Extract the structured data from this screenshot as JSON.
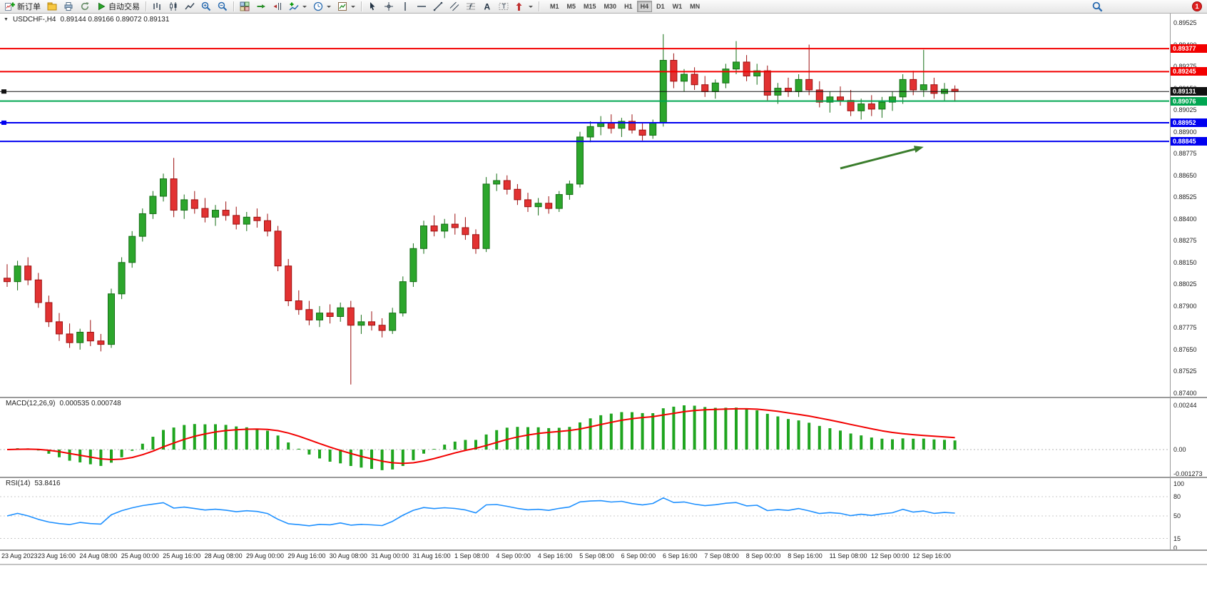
{
  "toolbar": {
    "new_order_label": "新订单",
    "auto_trading_label": "自动交易",
    "timeframes": [
      "M1",
      "M5",
      "M15",
      "M30",
      "H1",
      "H4",
      "D1",
      "W1",
      "MN"
    ],
    "active_timeframe": "H4",
    "notification_count": "1"
  },
  "symbol_overlay": {
    "dropdown_glyph": "▼",
    "symbol_period": "USDCHF-,H4",
    "ohlc_text": "0.89144 0.89166 0.89072 0.89131"
  },
  "chart_data": {
    "type": "candlestick",
    "symbol": "USDCHF-",
    "timeframe": "H4",
    "current_bar": {
      "open": 0.89144,
      "high": 0.89166,
      "low": 0.89072,
      "close": 0.89131
    },
    "price_axis": {
      "min": 0.874,
      "max": 0.89525,
      "tick_step": 0.00125,
      "ticks": [
        "0.89525",
        "0.89400",
        "0.89275",
        "0.89150",
        "0.89025",
        "0.88900",
        "0.88775",
        "0.88650",
        "0.88525",
        "0.88400",
        "0.88275",
        "0.88150",
        "0.88025",
        "0.87900",
        "0.87775",
        "0.87650",
        "0.87525",
        "0.87400"
      ]
    },
    "time_labels": [
      "23 Aug 2023",
      "23 Aug 16:00",
      "24 Aug 08:00",
      "25 Aug 00:00",
      "25 Aug 16:00",
      "28 Aug 08:00",
      "29 Aug 00:00",
      "29 Aug 16:00",
      "30 Aug 08:00",
      "31 Aug 00:00",
      "31 Aug 16:00",
      "1 Sep 08:00",
      "4 Sep 00:00",
      "4 Sep 16:00",
      "5 Sep 08:00",
      "6 Sep 00:00",
      "6 Sep 16:00",
      "7 Sep 08:00",
      "8 Sep 00:00",
      "8 Sep 16:00",
      "11 Sep 08:00",
      "12 Sep 00:00",
      "12 Sep 16:00"
    ],
    "colors": {
      "up": "#2ca62c",
      "up_border": "#156e15",
      "down": "#e23232",
      "down_border": "#9c1010",
      "background": "#ffffff"
    },
    "candles": [
      [
        0.8806,
        0.8814,
        0.8801,
        0.8804
      ],
      [
        0.8804,
        0.8816,
        0.8799,
        0.8813
      ],
      [
        0.8813,
        0.8818,
        0.8802,
        0.8805
      ],
      [
        0.8805,
        0.8809,
        0.8789,
        0.8792
      ],
      [
        0.8792,
        0.8796,
        0.8778,
        0.8781
      ],
      [
        0.8781,
        0.8786,
        0.877,
        0.8774
      ],
      [
        0.8774,
        0.878,
        0.8766,
        0.8769
      ],
      [
        0.8769,
        0.8777,
        0.8765,
        0.8775
      ],
      [
        0.8775,
        0.8782,
        0.8767,
        0.877
      ],
      [
        0.877,
        0.8774,
        0.8764,
        0.8768
      ],
      [
        0.8768,
        0.88,
        0.8766,
        0.8797
      ],
      [
        0.8797,
        0.8818,
        0.8794,
        0.8815
      ],
      [
        0.8815,
        0.8833,
        0.8812,
        0.883
      ],
      [
        0.883,
        0.8846,
        0.8827,
        0.8843
      ],
      [
        0.8843,
        0.8856,
        0.884,
        0.8853
      ],
      [
        0.8853,
        0.8866,
        0.885,
        0.8863
      ],
      [
        0.8863,
        0.8875,
        0.8841,
        0.8845
      ],
      [
        0.8845,
        0.8854,
        0.884,
        0.8851
      ],
      [
        0.8851,
        0.8856,
        0.8843,
        0.8846
      ],
      [
        0.8846,
        0.8852,
        0.8838,
        0.8841
      ],
      [
        0.8841,
        0.8848,
        0.8836,
        0.8845
      ],
      [
        0.8845,
        0.885,
        0.8839,
        0.8842
      ],
      [
        0.8842,
        0.8847,
        0.8834,
        0.8837
      ],
      [
        0.8837,
        0.8844,
        0.8833,
        0.8841
      ],
      [
        0.8841,
        0.8846,
        0.8835,
        0.8839
      ],
      [
        0.8839,
        0.8843,
        0.883,
        0.8833
      ],
      [
        0.8833,
        0.8836,
        0.881,
        0.8813
      ],
      [
        0.8813,
        0.8817,
        0.879,
        0.8793
      ],
      [
        0.8793,
        0.8799,
        0.8785,
        0.8788
      ],
      [
        0.8788,
        0.8793,
        0.8779,
        0.8782
      ],
      [
        0.8782,
        0.879,
        0.8778,
        0.8786
      ],
      [
        0.8786,
        0.8791,
        0.878,
        0.8784
      ],
      [
        0.8784,
        0.8792,
        0.8781,
        0.8789
      ],
      [
        0.8789,
        0.8793,
        0.8745,
        0.8779
      ],
      [
        0.8779,
        0.8785,
        0.8774,
        0.8781
      ],
      [
        0.8781,
        0.8787,
        0.8776,
        0.8779
      ],
      [
        0.8779,
        0.8783,
        0.8772,
        0.8776
      ],
      [
        0.8776,
        0.8789,
        0.8774,
        0.8786
      ],
      [
        0.8786,
        0.8807,
        0.8784,
        0.8804
      ],
      [
        0.8804,
        0.8826,
        0.8801,
        0.8823
      ],
      [
        0.8823,
        0.8839,
        0.882,
        0.8836
      ],
      [
        0.8836,
        0.8842,
        0.883,
        0.8833
      ],
      [
        0.8833,
        0.884,
        0.8829,
        0.8837
      ],
      [
        0.8837,
        0.8843,
        0.8831,
        0.8835
      ],
      [
        0.8835,
        0.8841,
        0.8828,
        0.8831
      ],
      [
        0.8831,
        0.8834,
        0.882,
        0.8823
      ],
      [
        0.8823,
        0.8864,
        0.8821,
        0.886
      ],
      [
        0.886,
        0.8866,
        0.8856,
        0.8862
      ],
      [
        0.8862,
        0.8865,
        0.8854,
        0.8857
      ],
      [
        0.8857,
        0.886,
        0.8848,
        0.8851
      ],
      [
        0.8851,
        0.8855,
        0.8844,
        0.8847
      ],
      [
        0.8847,
        0.8852,
        0.8842,
        0.8849
      ],
      [
        0.8849,
        0.8853,
        0.8843,
        0.8846
      ],
      [
        0.8846,
        0.8856,
        0.8844,
        0.8854
      ],
      [
        0.8854,
        0.8862,
        0.8851,
        0.886
      ],
      [
        0.886,
        0.889,
        0.8858,
        0.8887
      ],
      [
        0.8887,
        0.8896,
        0.8884,
        0.8893
      ],
      [
        0.8893,
        0.8899,
        0.8888,
        0.8895
      ],
      [
        0.8895,
        0.89,
        0.8889,
        0.8892
      ],
      [
        0.8892,
        0.8898,
        0.8887,
        0.8896
      ],
      [
        0.8896,
        0.89,
        0.8889,
        0.8891
      ],
      [
        0.8891,
        0.8895,
        0.8885,
        0.8888
      ],
      [
        0.8888,
        0.8897,
        0.8886,
        0.8895
      ],
      [
        0.8895,
        0.8946,
        0.8893,
        0.8931
      ],
      [
        0.8931,
        0.8935,
        0.8915,
        0.8919
      ],
      [
        0.8919,
        0.8926,
        0.8913,
        0.8923
      ],
      [
        0.8923,
        0.8927,
        0.8914,
        0.8917
      ],
      [
        0.8917,
        0.8922,
        0.891,
        0.8913
      ],
      [
        0.8913,
        0.892,
        0.8909,
        0.8918
      ],
      [
        0.8918,
        0.8929,
        0.8915,
        0.8926
      ],
      [
        0.8926,
        0.8942,
        0.8923,
        0.893
      ],
      [
        0.893,
        0.8934,
        0.8919,
        0.8922
      ],
      [
        0.8922,
        0.8929,
        0.8917,
        0.8925
      ],
      [
        0.8925,
        0.8928,
        0.8908,
        0.8911
      ],
      [
        0.8911,
        0.8918,
        0.8906,
        0.8915
      ],
      [
        0.8915,
        0.8921,
        0.891,
        0.8913
      ],
      [
        0.8913,
        0.8923,
        0.891,
        0.892
      ],
      [
        0.892,
        0.894,
        0.8911,
        0.8914
      ],
      [
        0.8914,
        0.8919,
        0.8904,
        0.8907
      ],
      [
        0.8907,
        0.8913,
        0.8901,
        0.891
      ],
      [
        0.891,
        0.8916,
        0.8905,
        0.8908
      ],
      [
        0.8908,
        0.8914,
        0.8899,
        0.8902
      ],
      [
        0.8902,
        0.8909,
        0.8897,
        0.8906
      ],
      [
        0.8906,
        0.8911,
        0.8899,
        0.8903
      ],
      [
        0.8903,
        0.891,
        0.8898,
        0.8907
      ],
      [
        0.8907,
        0.8913,
        0.8902,
        0.891
      ],
      [
        0.891,
        0.8923,
        0.8906,
        0.892
      ],
      [
        0.892,
        0.8925,
        0.8911,
        0.8914
      ],
      [
        0.8914,
        0.8937,
        0.891,
        0.8917
      ],
      [
        0.8917,
        0.8921,
        0.8909,
        0.8912
      ],
      [
        0.8912,
        0.8918,
        0.8908,
        0.89144
      ],
      [
        0.89144,
        0.89166,
        0.89072,
        0.89131
      ]
    ],
    "hlines": [
      {
        "price": 0.89377,
        "label": "0.89377",
        "color": "#f20000",
        "width": 2
      },
      {
        "price": 0.89245,
        "label": "0.89245",
        "color": "#f20000",
        "width": 2
      },
      {
        "price": 0.89131,
        "label": "0.89131",
        "color": "#111111",
        "width": 1,
        "left_mark": true
      },
      {
        "price": 0.89076,
        "label": "0.89076",
        "color": "#00a651",
        "width": 2
      },
      {
        "price": 0.88952,
        "label": "0.88952",
        "color": "#0000f0",
        "width": 2,
        "left_mark": true
      },
      {
        "price": 0.88845,
        "label": "0.88845",
        "color": "#0000f0",
        "width": 2
      }
    ],
    "arrow": {
      "from": {
        "bar": 80,
        "price": 0.8869
      },
      "to": {
        "bar": 87.8,
        "price": 0.8881
      },
      "color": "#3a7d2c"
    },
    "macd": {
      "name": "MACD(12,26,9)",
      "values": "0.000535 0.000748",
      "params": [
        12,
        26,
        9
      ],
      "axis_labels": [
        "0.00244",
        "0.00",
        "-0.001273"
      ],
      "color": "#1fa51f",
      "signal_color": "#f20000"
    },
    "rsi": {
      "name": "RSI(14)",
      "value": "53.8416",
      "period": 14,
      "levels": [
        "100",
        "80",
        "50",
        "15",
        "0"
      ],
      "dotted_levels": [
        80,
        50,
        15
      ],
      "color": "#1e90ff"
    }
  }
}
